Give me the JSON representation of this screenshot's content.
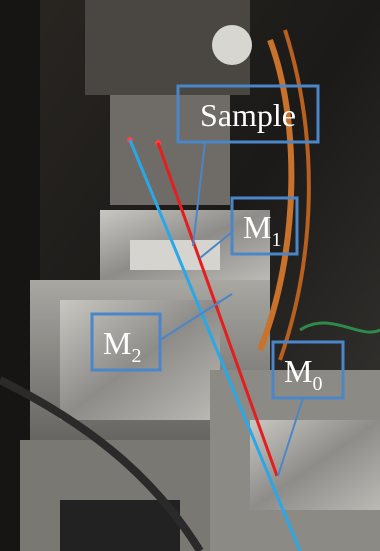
{
  "labels": [
    {
      "text": "Sample"
    },
    {
      "text": "M",
      "subscript": "1"
    },
    {
      "text": "M",
      "subscript": "2"
    },
    {
      "text": "M",
      "subscript": "0"
    }
  ]
}
